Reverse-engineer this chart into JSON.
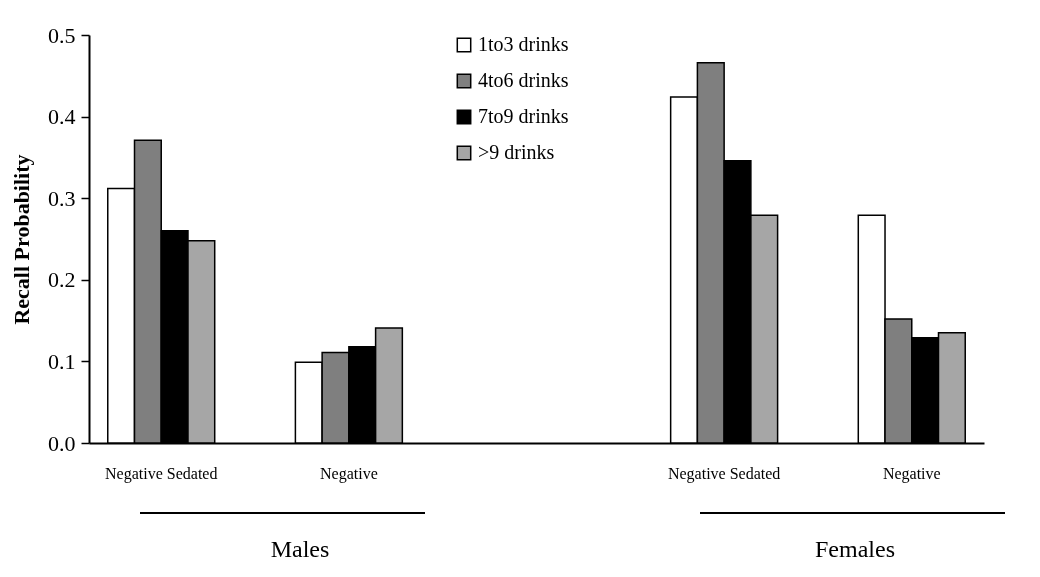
{
  "chart_data": {
    "type": "bar",
    "ylabel": "Recall Probability",
    "categories": [
      "Negative Sedated",
      "Negative",
      null,
      "Negative Sedated",
      "Negative"
    ],
    "series": [
      {
        "name": "1to3 drinks",
        "color": "#ffffff",
        "values": [
          0.312,
          0.099,
          null,
          0.424,
          0.279
        ]
      },
      {
        "name": "4to6 drinks",
        "color": "#7f7f7f",
        "values": [
          0.371,
          0.111,
          null,
          0.466,
          0.152
        ]
      },
      {
        "name": "7to9 drinks",
        "color": "#000000",
        "values": [
          0.26,
          0.118,
          null,
          0.346,
          0.129
        ]
      },
      {
        "name": ">9 drinks",
        "color": "#a6a6a6",
        "values": [
          0.248,
          0.141,
          null,
          0.279,
          0.135
        ]
      }
    ],
    "ylim": [
      0,
      0.5
    ],
    "yticks": [
      {
        "value": 0,
        "label": "0.0"
      },
      0.1,
      0.2,
      0.3,
      0.4,
      0.5
    ],
    "legend": "top",
    "annotations": [
      "Males",
      "Females"
    ]
  }
}
